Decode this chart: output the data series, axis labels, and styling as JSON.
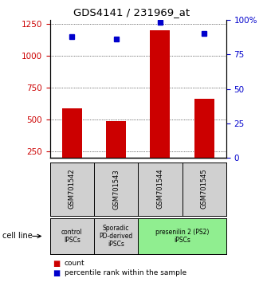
{
  "title": "GDS4141 / 231969_at",
  "samples": [
    "GSM701542",
    "GSM701543",
    "GSM701544",
    "GSM701545"
  ],
  "counts": [
    590,
    490,
    1200,
    660
  ],
  "percentile_ranks": [
    88,
    86,
    98,
    90
  ],
  "ylim_left": [
    200,
    1280
  ],
  "ylim_right": [
    0,
    100
  ],
  "yticks_left": [
    250,
    500,
    750,
    1000,
    1250
  ],
  "yticks_right": [
    0,
    25,
    50,
    75,
    100
  ],
  "bar_color": "#cc0000",
  "dot_color": "#0000cc",
  "bar_width": 0.45,
  "groups": [
    {
      "label": "control\nIPSCs",
      "start": 0,
      "end": 1,
      "color": "#d0d0d0"
    },
    {
      "label": "Sporadic\nPD-derived\niPSCs",
      "start": 1,
      "end": 2,
      "color": "#d0d0d0"
    },
    {
      "label": "presenilin 2 (PS2)\niPSCs",
      "start": 2,
      "end": 4,
      "color": "#90ee90"
    }
  ],
  "cell_line_label": "cell line",
  "legend_count_label": "count",
  "legend_percentile_label": "percentile rank within the sample",
  "ylabel_left_color": "#cc0000",
  "ylabel_right_color": "#0000cc"
}
